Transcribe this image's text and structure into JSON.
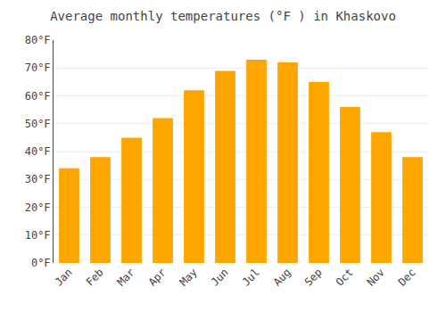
{
  "chart_data": {
    "type": "bar",
    "title": "Average monthly temperatures (°F ) in Khaskovo",
    "categories": [
      "Jan",
      "Feb",
      "Mar",
      "Apr",
      "May",
      "Jun",
      "Jul",
      "Aug",
      "Sep",
      "Oct",
      "Nov",
      "Dec"
    ],
    "values": [
      34,
      38,
      45,
      52,
      62,
      69,
      73,
      72,
      65,
      56,
      47,
      38
    ],
    "color": "#FFA500",
    "ylim": [
      0,
      80
    ],
    "yticks": [
      {
        "value": 0,
        "label": "0°F"
      },
      {
        "value": 10,
        "label": "10°F"
      },
      {
        "value": 20,
        "label": "20°F"
      },
      {
        "value": 30,
        "label": "30°F"
      },
      {
        "value": 40,
        "label": "40°F"
      },
      {
        "value": 50,
        "label": "50°F"
      },
      {
        "value": 60,
        "label": "60°F"
      },
      {
        "value": 70,
        "label": "70°F"
      },
      {
        "value": 80,
        "label": "80°F"
      }
    ],
    "grid": true
  }
}
